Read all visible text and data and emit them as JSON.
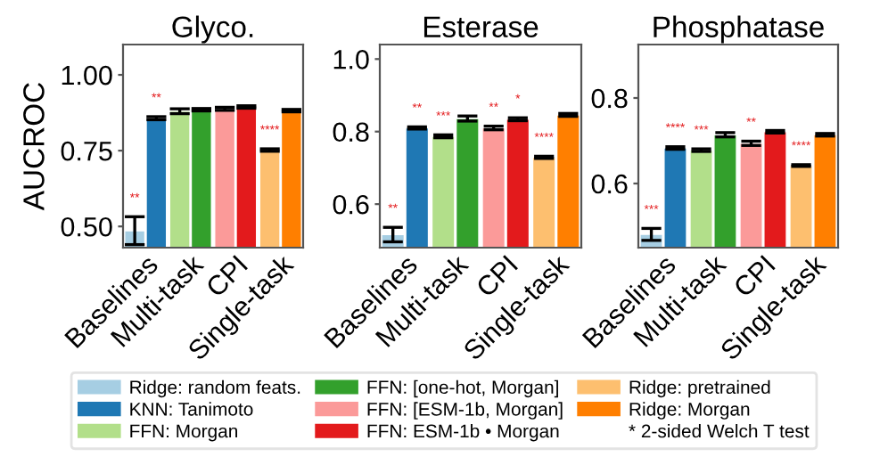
{
  "chart_data": [
    {
      "type": "bar",
      "title": "Glyco.",
      "ylabel": "AUCROC",
      "categories": [
        "Baselines",
        "Multi-task",
        "CPI",
        "Single-task"
      ],
      "ylim": [
        0.43,
        1.1
      ],
      "yticks": [
        {
          "value": 0.5,
          "label": "0.50"
        },
        {
          "value": 0.75,
          "label": "0.75"
        },
        {
          "value": 1.0,
          "label": "1.00"
        }
      ],
      "legend": "bottom",
      "annotations": [
        "* 2-sided Welch T test"
      ],
      "series": [
        {
          "name": "Ridge: random feats.",
          "color": "#a6cee3",
          "values": [
            0.486,
            null,
            null,
            null
          ],
          "errors": [
            0.046,
            null,
            null,
            null
          ],
          "value_labels": [
            "**",
            null,
            null,
            null
          ]
        },
        {
          "name": "KNN: Tanimoto",
          "color": "#1f78b4",
          "values": [
            0.857,
            null,
            null,
            null
          ],
          "errors": [
            0.005,
            null,
            null,
            null
          ],
          "value_labels": [
            "**",
            null,
            null,
            null
          ]
        },
        {
          "name": "FFN: Morgan",
          "color": "#b2df8a",
          "values": [
            null,
            0.88,
            null,
            null
          ],
          "errors": [
            null,
            0.008,
            null,
            null
          ],
          "value_labels": [
            null,
            null,
            null,
            null
          ]
        },
        {
          "name": "FFN: [one-hot, Morgan]",
          "color": "#33a02c",
          "values": [
            null,
            0.885,
            null,
            null
          ],
          "errors": [
            null,
            0.004,
            null,
            null
          ],
          "value_labels": [
            null,
            null,
            null,
            null
          ]
        },
        {
          "name": "FFN: [ESM-1b, Morgan]",
          "color": "#fb9a99",
          "values": [
            null,
            null,
            0.888,
            null
          ],
          "errors": [
            null,
            null,
            0.005,
            null
          ],
          "value_labels": [
            null,
            null,
            null,
            null
          ]
        },
        {
          "name": "FFN: ESM-1b • Morgan",
          "color": "#e31a1c",
          "values": [
            null,
            null,
            0.894,
            null
          ],
          "errors": [
            null,
            null,
            0.004,
            null
          ],
          "value_labels": [
            null,
            null,
            null,
            null
          ]
        },
        {
          "name": "Ridge: pretrained",
          "color": "#fdbf6f",
          "values": [
            null,
            null,
            null,
            0.752
          ],
          "errors": [
            null,
            null,
            null,
            0.004
          ],
          "value_labels": [
            null,
            null,
            null,
            "****"
          ]
        },
        {
          "name": "Ridge: Morgan",
          "color": "#ff7f00",
          "values": [
            null,
            null,
            null,
            0.882
          ],
          "errors": [
            null,
            null,
            null,
            0.004
          ],
          "value_labels": [
            null,
            null,
            null,
            null
          ]
        }
      ]
    },
    {
      "type": "bar",
      "title": "Esterase",
      "categories": [
        "Baselines",
        "Multi-task",
        "CPI",
        "Single-task"
      ],
      "ylim": [
        0.48,
        1.04
      ],
      "yticks": [
        {
          "value": 0.6,
          "label": "0.6"
        },
        {
          "value": 0.8,
          "label": "0.8"
        },
        {
          "value": 1.0,
          "label": "1.0"
        }
      ],
      "series": [
        {
          "color": "#a6cee3",
          "values": [
            0.516,
            null,
            null,
            null
          ],
          "errors": [
            0.02,
            null,
            null,
            null
          ],
          "value_labels": [
            "**",
            null,
            null,
            null
          ]
        },
        {
          "color": "#1f78b4",
          "values": [
            0.81,
            null,
            null,
            null
          ],
          "errors": [
            0.003,
            null,
            null,
            null
          ],
          "value_labels": [
            "**",
            null,
            null,
            null
          ]
        },
        {
          "color": "#b2df8a",
          "values": [
            null,
            0.787,
            null,
            null
          ],
          "errors": [
            null,
            0.004,
            null,
            null
          ],
          "value_labels": [
            null,
            "***",
            null,
            null
          ]
        },
        {
          "color": "#33a02c",
          "values": [
            null,
            0.836,
            null,
            null
          ],
          "errors": [
            null,
            0.007,
            null,
            null
          ],
          "value_labels": [
            null,
            null,
            null,
            null
          ]
        },
        {
          "color": "#fb9a99",
          "values": [
            null,
            null,
            0.81,
            null
          ],
          "errors": [
            null,
            null,
            0.005,
            null
          ],
          "value_labels": [
            null,
            null,
            "**",
            null
          ]
        },
        {
          "color": "#e31a1c",
          "values": [
            null,
            null,
            0.834,
            null
          ],
          "errors": [
            null,
            null,
            0.004,
            null
          ],
          "value_labels": [
            null,
            null,
            "*",
            null
          ]
        },
        {
          "color": "#fdbf6f",
          "values": [
            null,
            null,
            null,
            0.729
          ],
          "errors": [
            null,
            null,
            null,
            0.003
          ],
          "value_labels": [
            null,
            null,
            null,
            "****"
          ]
        },
        {
          "color": "#ff7f00",
          "values": [
            null,
            null,
            null,
            0.846
          ],
          "errors": [
            null,
            null,
            null,
            0.004
          ],
          "value_labels": [
            null,
            null,
            null,
            null
          ]
        }
      ]
    },
    {
      "type": "bar",
      "title": "Phosphatase",
      "categories": [
        "Baselines",
        "Multi-task",
        "CPI",
        "Single-task"
      ],
      "ylim": [
        0.45,
        0.925
      ],
      "yticks": [
        {
          "value": 0.6,
          "label": "0.6"
        },
        {
          "value": 0.8,
          "label": "0.8"
        }
      ],
      "series": [
        {
          "color": "#a6cee3",
          "values": [
            0.481,
            null,
            null,
            null
          ],
          "errors": [
            0.014,
            null,
            null,
            null
          ],
          "value_labels": [
            "***",
            null,
            null,
            null
          ]
        },
        {
          "color": "#1f78b4",
          "values": [
            0.683,
            null,
            null,
            null
          ],
          "errors": [
            0.003,
            null,
            null,
            null
          ],
          "value_labels": [
            "****",
            null,
            null,
            null
          ]
        },
        {
          "color": "#b2df8a",
          "values": [
            null,
            0.678,
            null,
            null
          ],
          "errors": [
            null,
            0.003,
            null,
            null
          ],
          "value_labels": [
            null,
            "***",
            null,
            null
          ]
        },
        {
          "color": "#33a02c",
          "values": [
            null,
            0.714,
            null,
            null
          ],
          "errors": [
            null,
            0.005,
            null,
            null
          ],
          "value_labels": [
            null,
            null,
            null,
            null
          ]
        },
        {
          "color": "#fb9a99",
          "values": [
            null,
            null,
            0.694,
            null
          ],
          "errors": [
            null,
            null,
            0.005,
            null
          ],
          "value_labels": [
            null,
            null,
            "**",
            null
          ]
        },
        {
          "color": "#e31a1c",
          "values": [
            null,
            null,
            0.721,
            null
          ],
          "errors": [
            null,
            null,
            0.003,
            null
          ],
          "value_labels": [
            null,
            null,
            null,
            null
          ]
        },
        {
          "color": "#fdbf6f",
          "values": [
            null,
            null,
            null,
            0.642
          ],
          "errors": [
            null,
            null,
            null,
            0.002
          ],
          "value_labels": [
            null,
            null,
            null,
            "****"
          ]
        },
        {
          "color": "#ff7f00",
          "values": [
            null,
            null,
            null,
            0.714
          ],
          "errors": [
            null,
            null,
            null,
            0.003
          ],
          "value_labels": [
            null,
            null,
            null,
            null
          ]
        }
      ]
    }
  ]
}
